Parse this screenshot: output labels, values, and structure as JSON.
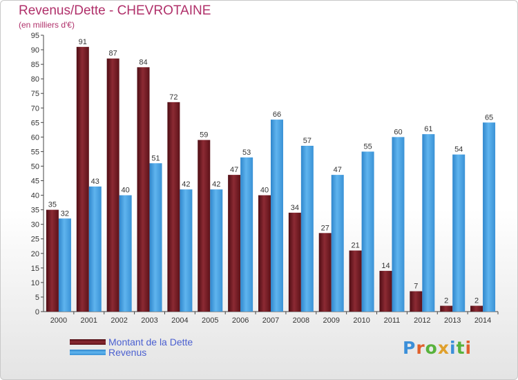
{
  "header": {
    "title": "Revenus/Dette - CHEVROTAINE",
    "subtitle": "(en milliers d'€)"
  },
  "colors": {
    "debt": "#7a1e26",
    "revenue": "#4aa3e3",
    "title": "#b0306a"
  },
  "legend": {
    "items": [
      {
        "label": "Montant de la Dette",
        "color": "#7a1e26"
      },
      {
        "label": "Revenus",
        "color": "#4aa3e3"
      }
    ]
  },
  "logo": {
    "text": "Proxiti"
  },
  "chart_data": {
    "type": "bar",
    "categories": [
      "2000",
      "2001",
      "2002",
      "2003",
      "2004",
      "2005",
      "2006",
      "2007",
      "2008",
      "2009",
      "2010",
      "2011",
      "2012",
      "2013",
      "2014"
    ],
    "series": [
      {
        "name": "Montant de la Dette",
        "values": [
          35,
          91,
          87,
          84,
          72,
          59,
          47,
          40,
          34,
          27,
          21,
          14,
          7,
          2,
          2
        ]
      },
      {
        "name": "Revenus",
        "values": [
          32,
          43,
          40,
          51,
          42,
          42,
          53,
          66,
          57,
          47,
          55,
          60,
          61,
          54,
          65
        ]
      }
    ],
    "title": "Revenus/Dette - CHEVROTAINE",
    "ylabel": "(en milliers d'€)",
    "ylim": [
      0,
      95
    ],
    "yticks": [
      0,
      5,
      10,
      15,
      20,
      25,
      30,
      35,
      40,
      45,
      50,
      55,
      60,
      65,
      70,
      75,
      80,
      85,
      90,
      95
    ],
    "grid": false,
    "legend_position": "bottom-left"
  }
}
